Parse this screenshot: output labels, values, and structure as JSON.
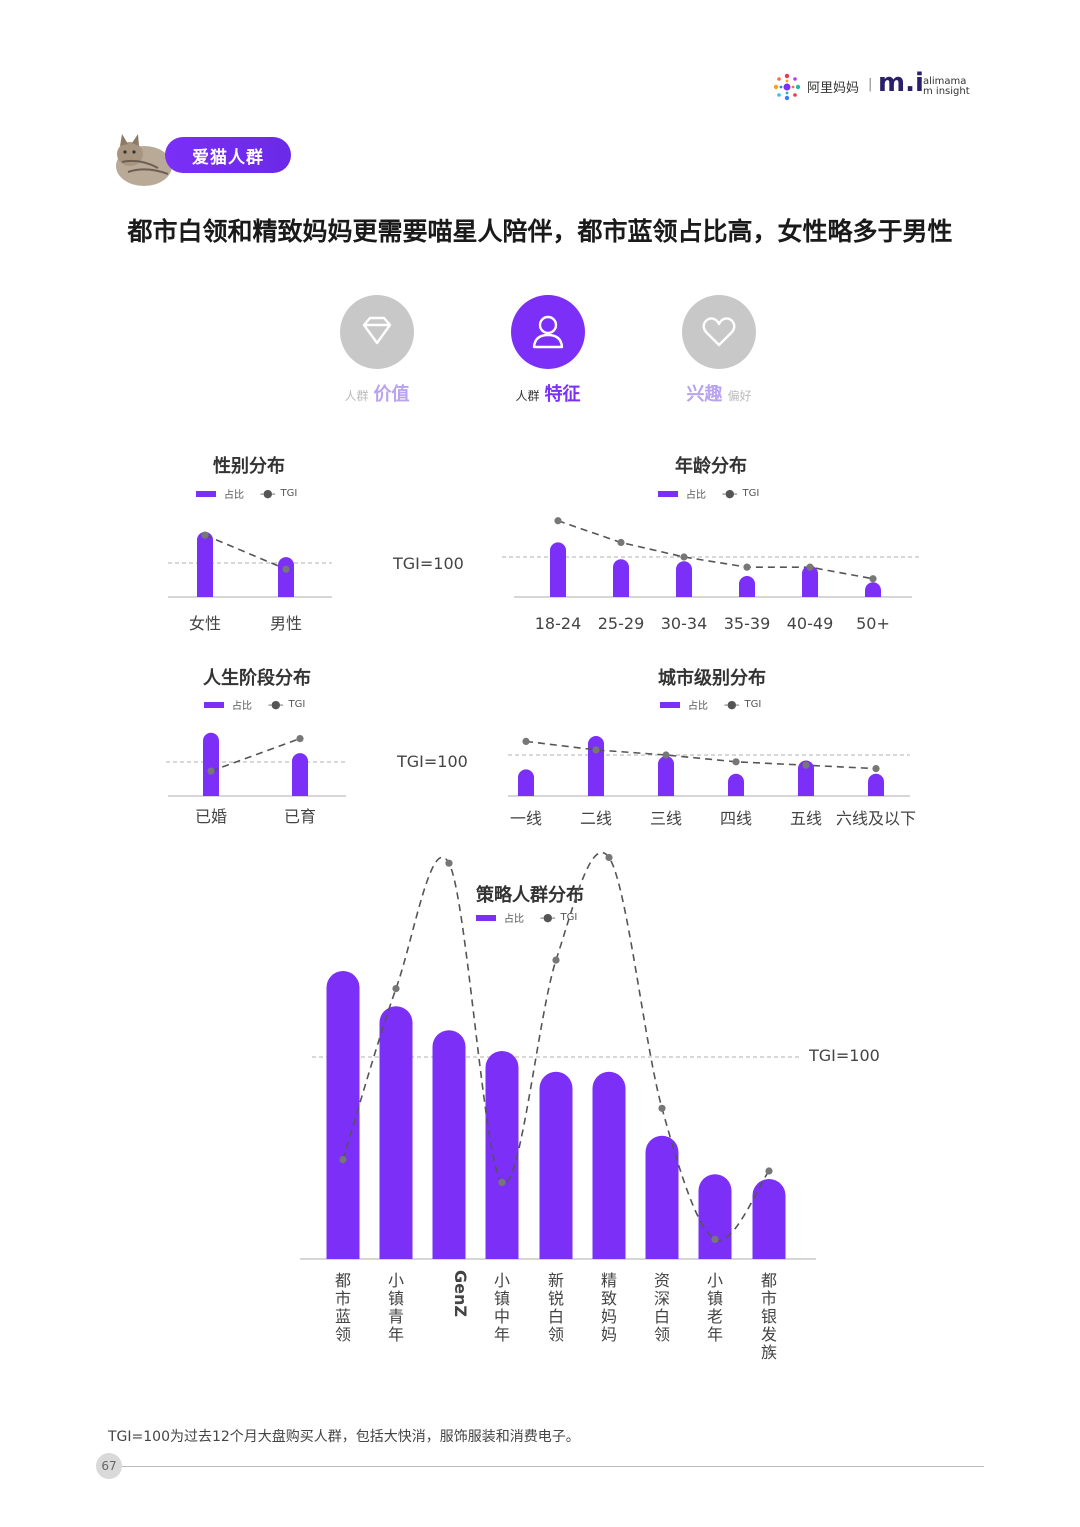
{
  "brand": {
    "name": "阿里妈妈",
    "sep": "|",
    "mark": "m.i",
    "sub1": "alimama",
    "sub2": "m insight"
  },
  "tag": "爱猫人群",
  "headline": "都市白领和精致妈妈更需要喵星人陪伴，都市蓝领占比高，女性略多于男性",
  "nav": [
    {
      "small": "人群",
      "big": "价值",
      "icon": "diamond-icon",
      "active": false
    },
    {
      "small": "人群",
      "big": "特征",
      "icon": "person-icon",
      "active": true
    },
    {
      "big": "兴趣",
      "small": "偏好",
      "icon": "heart-icon",
      "active": false
    }
  ],
  "legend": {
    "bar": "占比",
    "line": "TGI"
  },
  "tgi_label": "TGI=100",
  "colors": {
    "bar": "#7b2ff7",
    "active": "#7b2ff7",
    "inactive": "#c8c8c8",
    "line": "#555555"
  },
  "chart_data": [
    {
      "type": "bar",
      "title": "性别分布",
      "categories": [
        "女性",
        "男性"
      ],
      "series": [
        {
          "name": "占比",
          "values": [
            0.62,
            0.38
          ]
        },
        {
          "name": "TGI",
          "values": [
            118,
            96
          ]
        }
      ],
      "reference_line": 100
    },
    {
      "type": "bar",
      "title": "年龄分布",
      "categories": [
        "18-24",
        "25-29",
        "30-34",
        "35-39",
        "40-49",
        "50+"
      ],
      "series": [
        {
          "name": "占比",
          "values": [
            0.26,
            0.18,
            0.17,
            0.1,
            0.15,
            0.07
          ]
        },
        {
          "name": "TGI",
          "values": [
            125,
            110,
            100,
            93,
            93,
            85
          ]
        }
      ],
      "reference_line": 100
    },
    {
      "type": "bar",
      "title": "人生阶段分布",
      "categories": [
        "已婚",
        "已育"
      ],
      "series": [
        {
          "name": "占比",
          "values": [
            0.62,
            0.42
          ]
        },
        {
          "name": "TGI",
          "values": [
            93,
            118
          ]
        }
      ],
      "reference_line": 100
    },
    {
      "type": "bar",
      "title": "城市级别分布",
      "categories": [
        "一线",
        "二线",
        "三线",
        "四线",
        "五线",
        "六线及以下"
      ],
      "series": [
        {
          "name": "占比",
          "values": [
            0.12,
            0.27,
            0.18,
            0.1,
            0.16,
            0.1
          ]
        },
        {
          "name": "TGI",
          "values": [
            108,
            103,
            100,
            96,
            94,
            92
          ]
        }
      ],
      "reference_line": 100
    },
    {
      "type": "bar",
      "title": "策略人群分布",
      "categories": [
        "都市蓝领",
        "小镇青年",
        "GenZ",
        "小镇中年",
        "新锐白领",
        "精致妈妈",
        "资深白领",
        "小镇老年",
        "都市银发族"
      ],
      "series": [
        {
          "name": "占比",
          "values": [
            0.18,
            0.158,
            0.143,
            0.13,
            0.117,
            0.117,
            0.077,
            0.053,
            0.05
          ]
        },
        {
          "name": "TGI",
          "values": [
            82,
            112,
            134,
            78,
            117,
            135,
            91,
            68,
            80
          ]
        }
      ],
      "reference_line": 100
    }
  ],
  "footnote": "TGI=100为过去12个月大盘购买人群，包括大快消，服饰服装和消费电子。",
  "page_number": "67"
}
